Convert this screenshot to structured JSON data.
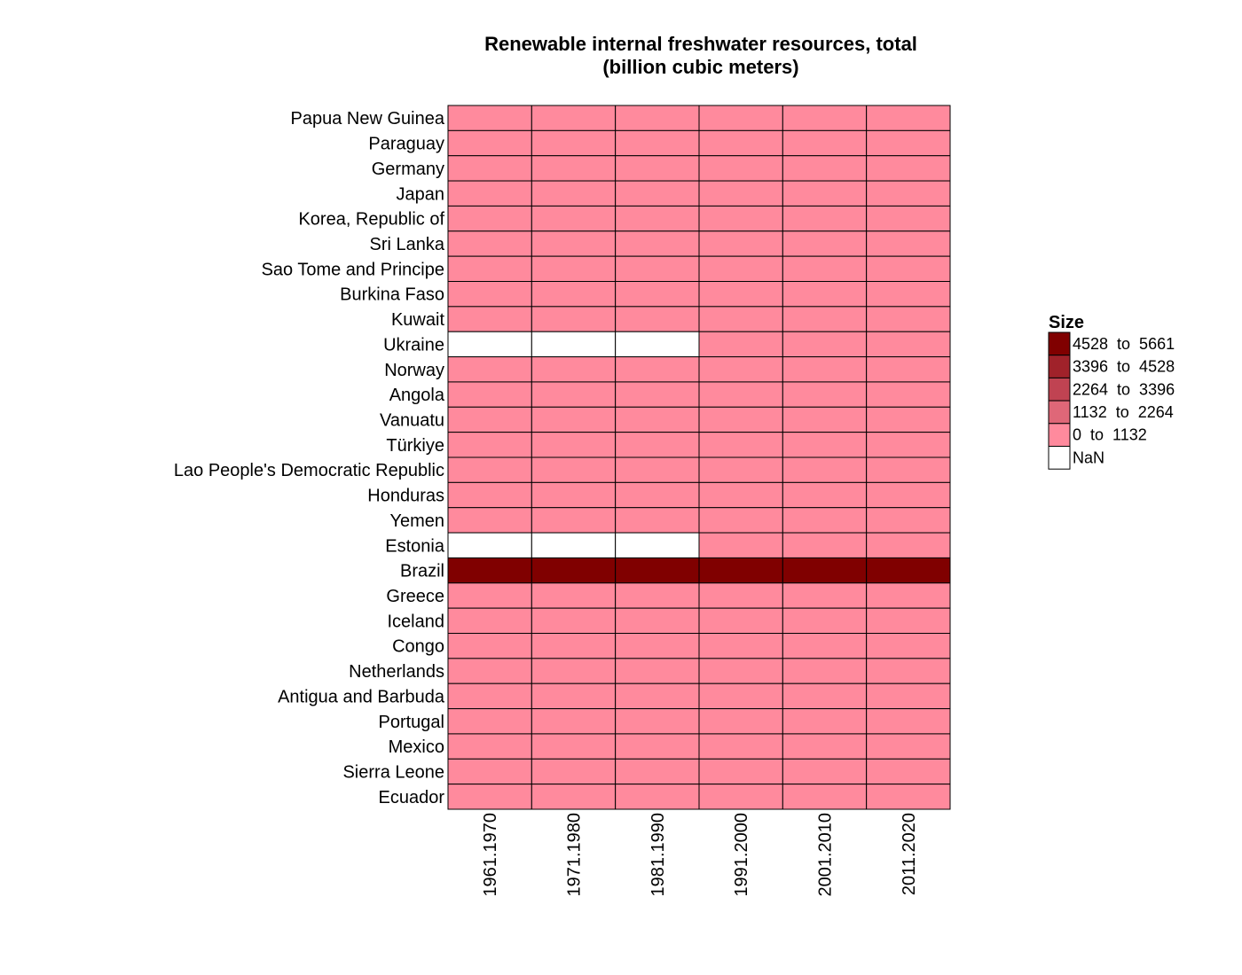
{
  "chart_data": {
    "type": "heatmap",
    "title": "Renewable internal freshwater resources, total",
    "subtitle": "(billion cubic meters)",
    "columns": [
      "1961.1970",
      "1971.1980",
      "1981.1990",
      "1991.2000",
      "2001.2010",
      "2011.2020"
    ],
    "rows": [
      "Papua New Guinea",
      "Paraguay",
      "Germany",
      "Japan",
      "Korea, Republic of",
      "Sri Lanka",
      "Sao Tome and Principe",
      "Burkina Faso",
      "Kuwait",
      "Ukraine",
      "Norway",
      "Angola",
      "Vanuatu",
      "Türkiye",
      "Lao People's Democratic Republic",
      "Honduras",
      "Yemen",
      "Estonia",
      "Brazil",
      "Greece",
      "Iceland",
      "Congo",
      "Netherlands",
      "Antigua and Barbuda",
      "Portugal",
      "Mexico",
      "Sierra Leone",
      "Ecuador"
    ],
    "values": [
      [
        801,
        801,
        801,
        801,
        801,
        801
      ],
      [
        117,
        117,
        117,
        117,
        117,
        117
      ],
      [
        107,
        107,
        107,
        107,
        107,
        107
      ],
      [
        430,
        430,
        430,
        430,
        430,
        430
      ],
      [
        64.9,
        64.9,
        64.9,
        64.9,
        64.9,
        64.9
      ],
      [
        52.8,
        52.8,
        52.8,
        52.8,
        52.8,
        52.8
      ],
      [
        2.18,
        2.18,
        2.18,
        2.18,
        2.18,
        2.18
      ],
      [
        12.5,
        12.5,
        12.5,
        12.5,
        12.5,
        12.5
      ],
      [
        0,
        0,
        0,
        0,
        0,
        0
      ],
      [
        null,
        null,
        null,
        55.1,
        55.1,
        55.1
      ],
      [
        382,
        382,
        382,
        382,
        382,
        382
      ],
      [
        148,
        148,
        148,
        148,
        148,
        148
      ],
      [
        10,
        10,
        10,
        10,
        10,
        10
      ],
      [
        227,
        227,
        227,
        227,
        227,
        227
      ],
      [
        190,
        190,
        190,
        190,
        190,
        190
      ],
      [
        90.7,
        90.7,
        90.7,
        90.7,
        90.7,
        90.7
      ],
      [
        2.1,
        2.1,
        2.1,
        2.1,
        2.1,
        2.1
      ],
      [
        null,
        null,
        null,
        12.7,
        12.7,
        12.7
      ],
      [
        5661,
        5661,
        5661,
        5661,
        5661,
        5661
      ],
      [
        58,
        58,
        58,
        58,
        58,
        58
      ],
      [
        170,
        170,
        170,
        170,
        170,
        170
      ],
      [
        222,
        222,
        222,
        222,
        222,
        222
      ],
      [
        11,
        11,
        11,
        11,
        11,
        11
      ],
      [
        0.052,
        0.052,
        0.052,
        0.052,
        0.052,
        0.052
      ],
      [
        38,
        38,
        38,
        38,
        38,
        38
      ],
      [
        409,
        409,
        409,
        409,
        409,
        409
      ],
      [
        160,
        160,
        160,
        160,
        160,
        160
      ],
      [
        442,
        442,
        442,
        442,
        442,
        442
      ]
    ],
    "legend": {
      "title": "Size",
      "placement": "right",
      "bins": [
        {
          "from": 4528,
          "to": 5661,
          "label": "4528  to  5661",
          "color": "#800000"
        },
        {
          "from": 3396,
          "to": 4528,
          "label": "3396  to  4528",
          "color": "#a0222a"
        },
        {
          "from": 2264,
          "to": 3396,
          "label": "2264  to  3396",
          "color": "#c04352"
        },
        {
          "from": 1132,
          "to": 2264,
          "label": "1132  to  2264",
          "color": "#df6778"
        },
        {
          "from": 0,
          "to": 1132,
          "label": "0  to  1132",
          "color": "#ff8a9d"
        },
        {
          "from": null,
          "to": null,
          "label": "NaN",
          "color": "#ffffff"
        }
      ]
    }
  }
}
